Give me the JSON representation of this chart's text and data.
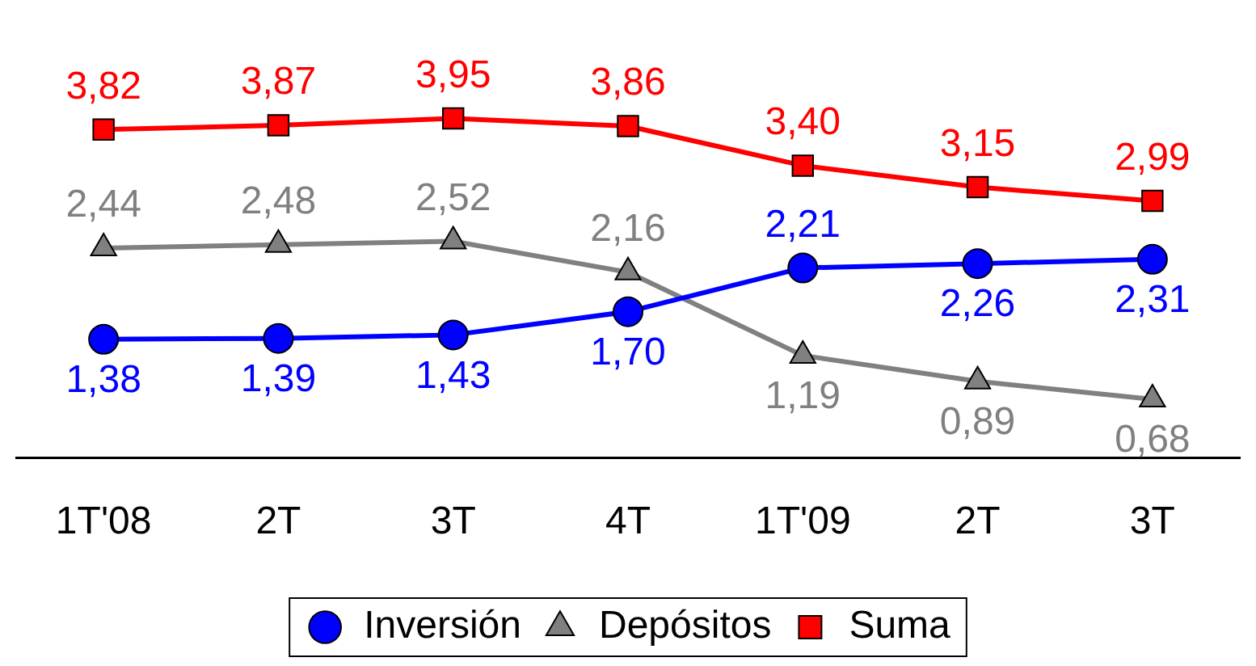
{
  "chart_data": {
    "type": "line",
    "categories": [
      "1T'08",
      "2T",
      "3T",
      "4T",
      "1T'09",
      "2T",
      "3T"
    ],
    "series": [
      {
        "name": "Inversión",
        "color": "#0000ff",
        "marker": "circle",
        "values": [
          1.38,
          1.39,
          1.43,
          1.7,
          2.21,
          2.26,
          2.31
        ],
        "value_labels": [
          "1,38",
          "1,39",
          "1,43",
          "1,70",
          "2,21",
          "2,26",
          "2,31"
        ]
      },
      {
        "name": "Depósitos",
        "color": "#808080",
        "marker": "triangle",
        "values": [
          2.44,
          2.48,
          2.52,
          2.16,
          1.19,
          0.89,
          0.68
        ],
        "value_labels": [
          "2,44",
          "2,48",
          "2,52",
          "2,16",
          "1,19",
          "0,89",
          "0,68"
        ]
      },
      {
        "name": "Suma",
        "color": "#ff0000",
        "marker": "square",
        "values": [
          3.82,
          3.87,
          3.95,
          3.86,
          3.4,
          3.15,
          2.99
        ],
        "value_labels": [
          "3,82",
          "3,87",
          "3,95",
          "3,86",
          "3,40",
          "3,15",
          "2,99"
        ]
      }
    ],
    "legend": "bottom",
    "grid": false
  }
}
